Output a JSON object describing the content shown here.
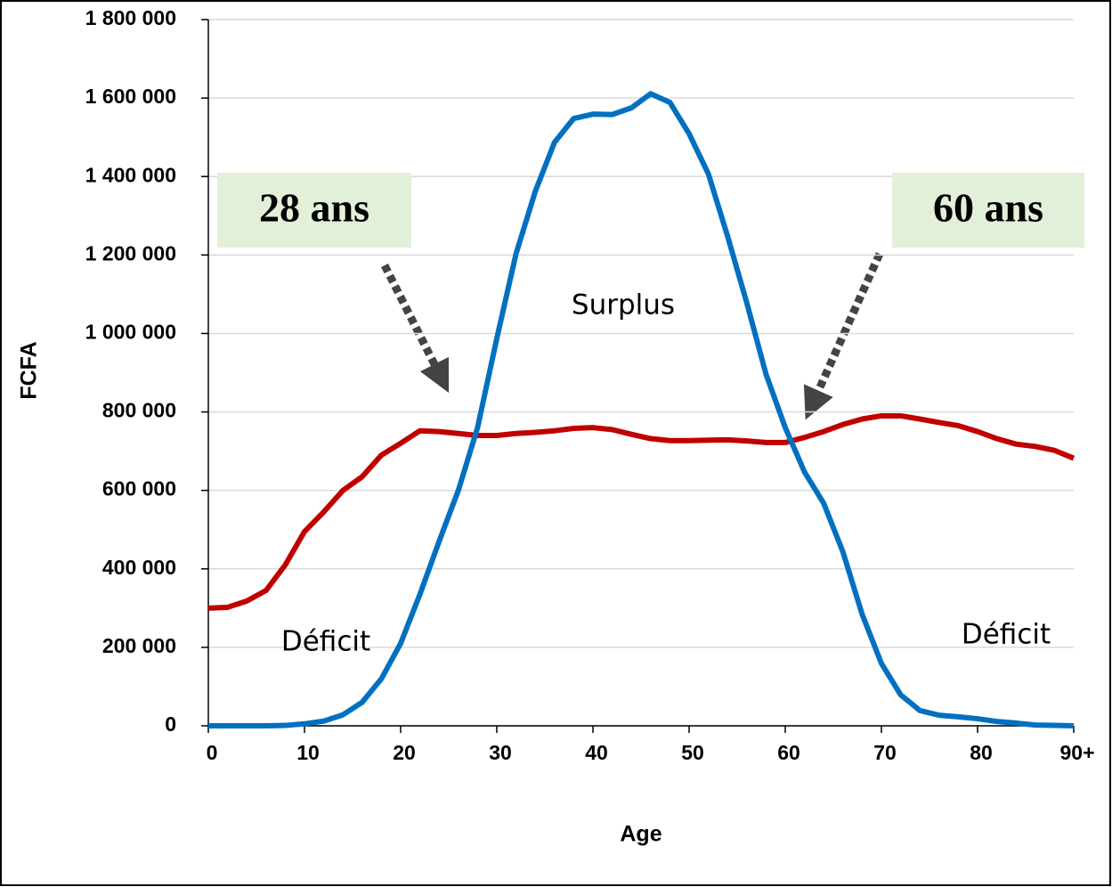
{
  "chart_data": {
    "type": "line",
    "x_label": "Age",
    "y_label": "FCFA",
    "x": [
      0,
      2,
      4,
      6,
      8,
      10,
      12,
      14,
      16,
      18,
      20,
      22,
      24,
      26,
      28,
      30,
      32,
      34,
      36,
      38,
      40,
      42,
      44,
      46,
      48,
      50,
      52,
      54,
      56,
      58,
      60,
      62,
      64,
      66,
      68,
      70,
      72,
      74,
      76,
      78,
      80,
      82,
      84,
      86,
      88,
      90
    ],
    "series": [
      {
        "color": "#c00000",
        "values": [
          300000,
          302000,
          318000,
          345000,
          410000,
          495000,
          545000,
          600000,
          635000,
          690000,
          720000,
          752000,
          750000,
          745000,
          740000,
          740000,
          745000,
          748000,
          752000,
          758000,
          760000,
          755000,
          743000,
          732000,
          727000,
          727000,
          728000,
          729000,
          726000,
          722000,
          722000,
          735000,
          750000,
          768000,
          782000,
          790000,
          790000,
          782000,
          773000,
          765000,
          750000,
          732000,
          718000,
          712000,
          702000,
          682000
        ]
      },
      {
        "color": "#0070c0",
        "values": [
          0,
          0,
          0,
          0,
          1000,
          5000,
          12000,
          28000,
          60000,
          120000,
          210000,
          335000,
          470000,
          600000,
          760000,
          987000,
          1203000,
          1362000,
          1487000,
          1548000,
          1559000,
          1558000,
          1575000,
          1611000,
          1589000,
          1509000,
          1407000,
          1248000,
          1078000,
          896000,
          760000,
          647000,
          567000,
          443000,
          284000,
          159000,
          79000,
          39000,
          27000,
          23000,
          18000,
          11000,
          7000,
          2000,
          1000,
          0
        ]
      }
    ],
    "xlim": [
      0,
      90
    ],
    "ylim": [
      0,
      1800000
    ],
    "xticks": [
      0,
      10,
      20,
      30,
      40,
      50,
      60,
      70,
      80,
      {
        "value": 90,
        "label": "90+"
      }
    ],
    "yticks": [
      0,
      {
        "value": 200000,
        "label": "200 000"
      },
      {
        "value": 400000,
        "label": "400 000"
      },
      {
        "value": 600000,
        "label": "600 000"
      },
      {
        "value": 800000,
        "label": "800 000"
      },
      {
        "value": 1000000,
        "label": "1 000 000"
      },
      {
        "value": 1200000,
        "label": "1 200 000"
      },
      {
        "value": 1400000,
        "label": "1 400 000"
      },
      {
        "value": 1600000,
        "label": "1 600 000"
      },
      {
        "value": 1800000,
        "label": "1 800 000"
      }
    ],
    "grid": true,
    "annotations": [
      "28 ans",
      "60 ans",
      "Surplus",
      "Déficit",
      "Déficit"
    ]
  }
}
